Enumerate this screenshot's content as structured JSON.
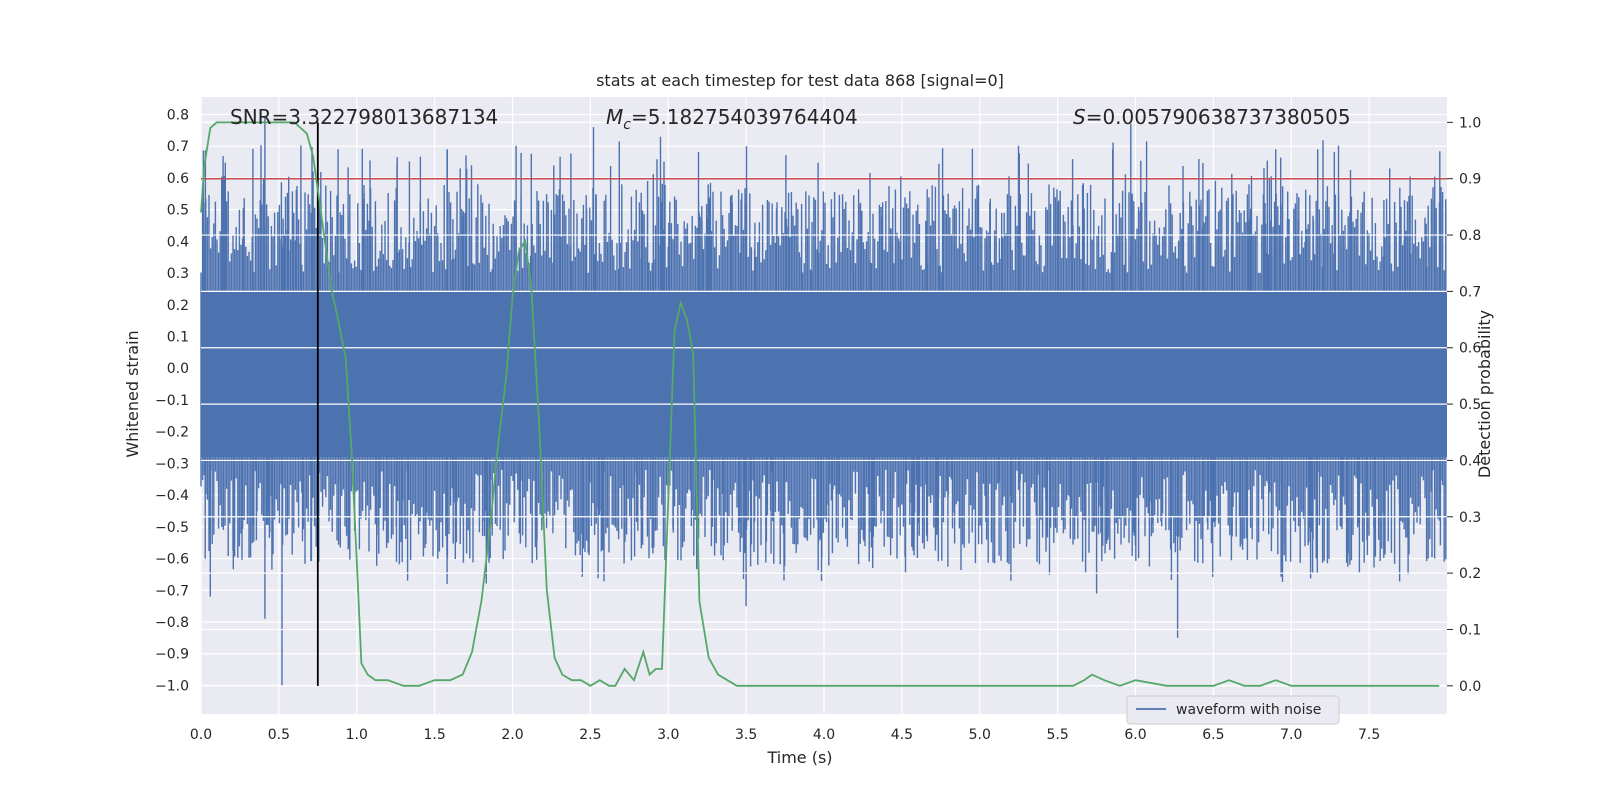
{
  "chart_data": {
    "type": "line",
    "title": "stats at each timestep for test data 868 [signal=0]",
    "xlabel": "Time (s)",
    "ylabel": "Whitened strain",
    "y2label": "Detection probability",
    "xlim": [
      0.0,
      8.0
    ],
    "ylim": [
      -1.09,
      0.855
    ],
    "y2lim": [
      -0.05,
      1.045
    ],
    "xticks": [
      "0.0",
      "0.5",
      "1.0",
      "1.5",
      "2.0",
      "2.5",
      "3.0",
      "3.5",
      "4.0",
      "4.5",
      "5.0",
      "5.5",
      "6.0",
      "6.5",
      "7.0",
      "7.5"
    ],
    "yticks": [
      "0.8",
      "0.7",
      "0.6",
      "0.5",
      "0.4",
      "0.3",
      "0.2",
      "0.1",
      "0.0",
      "-0.1",
      "-0.2",
      "-0.3",
      "-0.4",
      "-0.5",
      "-0.6",
      "-0.7",
      "-0.8",
      "-0.9",
      "-1.0"
    ],
    "y2ticks": [
      "1.0",
      "0.9",
      "0.8",
      "0.7",
      "0.6",
      "0.5",
      "0.4",
      "0.3",
      "0.2",
      "0.1",
      "0.0"
    ],
    "annotations": {
      "snr": "SNR=3.322798013687134",
      "mc_symbol": "M",
      "mc_sub": "c",
      "mc_value": "=5.182754039764404",
      "s_symbol": "S",
      "s_value": "=0.005790638737380505"
    },
    "threshold_y2": 0.9,
    "vline_x": 0.75,
    "series": [
      {
        "name": "waveform with noise",
        "axis": "left",
        "color": "#4c72b0",
        "description": "noisy whitened strain, approx. uniform noise band between -0.45 and 0.45 with spikes",
        "band_upper": 0.24,
        "band_lower": -0.28,
        "spikes": [
          {
            "x": 0.41,
            "y": 0.79
          },
          {
            "x": 0.52,
            "y": -1.0
          },
          {
            "x": 0.41,
            "y": -0.79
          },
          {
            "x": 0.06,
            "y": -0.72
          },
          {
            "x": 0.72,
            "y": 0.62
          },
          {
            "x": 0.88,
            "y": 0.69
          },
          {
            "x": 1.58,
            "y": -0.68
          },
          {
            "x": 1.58,
            "y": 0.69
          },
          {
            "x": 2.52,
            "y": 0.76
          },
          {
            "x": 2.95,
            "y": 0.73
          },
          {
            "x": 3.5,
            "y": -0.75
          },
          {
            "x": 5.2,
            "y": -0.67
          },
          {
            "x": 5.75,
            "y": -0.71
          },
          {
            "x": 5.97,
            "y": 0.77
          },
          {
            "x": 6.27,
            "y": -0.85
          },
          {
            "x": 7.17,
            "y": 0.69
          },
          {
            "x": 7.75,
            "y": -0.65
          },
          {
            "x": 6.9,
            "y": 0.69
          }
        ]
      },
      {
        "name": "detection probability",
        "axis": "right",
        "color": "#55a868",
        "x": [
          0.0,
          0.02,
          0.06,
          0.1,
          0.15,
          0.2,
          0.25,
          0.3,
          0.35,
          0.4,
          0.45,
          0.5,
          0.55,
          0.6,
          0.64,
          0.68,
          0.72,
          0.76,
          0.8,
          0.84,
          0.88,
          0.93,
          0.97,
          1.0,
          1.03,
          1.07,
          1.12,
          1.2,
          1.3,
          1.4,
          1.5,
          1.6,
          1.68,
          1.74,
          1.8,
          1.86,
          1.9,
          1.96,
          2.0,
          2.04,
          2.08,
          2.12,
          2.17,
          2.22,
          2.27,
          2.32,
          2.38,
          2.44,
          2.5,
          2.56,
          2.62,
          2.66,
          2.72,
          2.78,
          2.84,
          2.88,
          2.92,
          2.96,
          3.0,
          3.04,
          3.08,
          3.12,
          3.16,
          3.2,
          3.26,
          3.32,
          3.38,
          3.44,
          3.5,
          3.6,
          3.8,
          4.0,
          4.2,
          4.4,
          4.6,
          4.8,
          5.0,
          5.2,
          5.4,
          5.5,
          5.6,
          5.67,
          5.72,
          5.8,
          5.9,
          6.0,
          6.2,
          6.4,
          6.5,
          6.6,
          6.7,
          6.8,
          6.9,
          7.0,
          7.1,
          7.2,
          7.4,
          7.6,
          7.8,
          7.95
        ],
        "y": [
          0.84,
          0.92,
          0.99,
          1.0,
          1.0,
          1.0,
          1.0,
          1.0,
          1.0,
          1.0,
          1.0,
          1.0,
          1.0,
          1.0,
          0.99,
          0.98,
          0.94,
          0.86,
          0.78,
          0.7,
          0.65,
          0.58,
          0.4,
          0.22,
          0.04,
          0.02,
          0.01,
          0.01,
          0.0,
          0.0,
          0.01,
          0.01,
          0.02,
          0.06,
          0.15,
          0.29,
          0.41,
          0.55,
          0.69,
          0.77,
          0.79,
          0.71,
          0.47,
          0.17,
          0.05,
          0.02,
          0.01,
          0.01,
          0.0,
          0.01,
          0.0,
          0.0,
          0.03,
          0.01,
          0.06,
          0.02,
          0.03,
          0.03,
          0.33,
          0.63,
          0.68,
          0.65,
          0.59,
          0.15,
          0.05,
          0.02,
          0.01,
          0.0,
          0.0,
          0.0,
          0.0,
          0.0,
          0.0,
          0.0,
          0.0,
          0.0,
          0.0,
          0.0,
          0.0,
          0.0,
          0.0,
          0.01,
          0.02,
          0.01,
          0.0,
          0.01,
          0.0,
          0.0,
          0.0,
          0.01,
          0.0,
          0.0,
          0.01,
          0.0,
          0.0,
          0.0,
          0.0,
          0.0,
          0.0,
          0.0
        ]
      }
    ],
    "legend": {
      "label": "waveform with noise",
      "placement": "lower-right"
    },
    "colors": {
      "background": "#eaeaf2",
      "grid": "#ffffff",
      "threshold": "#c44e52",
      "vline": "#000000"
    }
  }
}
